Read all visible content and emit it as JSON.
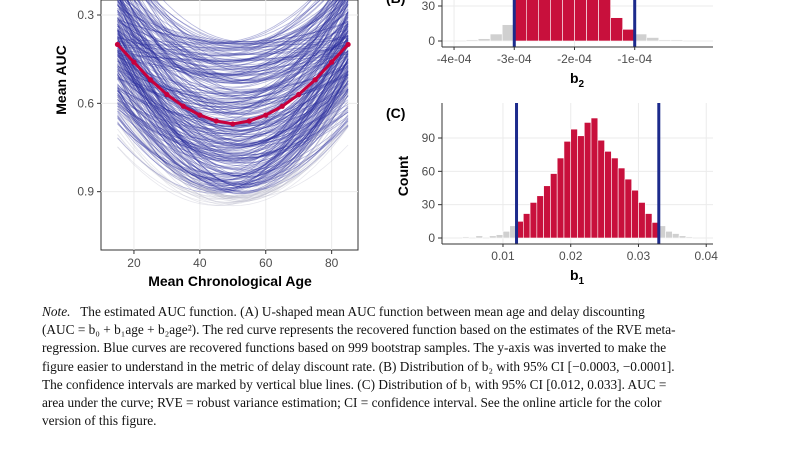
{
  "chart_data": [
    {
      "panel": "A",
      "type": "line",
      "xlabel": "Mean Chronological Age",
      "ylabel": "Mean AUC",
      "xticks": [
        20,
        40,
        60,
        80
      ],
      "yticks": [
        0.3,
        0.6,
        0.9
      ],
      "xlim": [
        10,
        88
      ],
      "ylim_inverted": true,
      "series": [
        {
          "name": "",
          "color": "#c8003c",
          "x": [
            15,
            20,
            25,
            30,
            35,
            40,
            45,
            50,
            55,
            60,
            65,
            70,
            75,
            80,
            85
          ],
          "values": [
            0.4,
            0.46,
            0.52,
            0.57,
            0.61,
            0.64,
            0.66,
            0.67,
            0.66,
            0.64,
            0.61,
            0.57,
            0.52,
            0.46,
            0.4
          ]
        }
      ],
      "bootstrap_curves": 999,
      "bootstrap_color": "#2b2f9e"
    },
    {
      "panel": "B",
      "label": "(B)",
      "type": "bar",
      "xlabel_main": "b",
      "xlabel_sub": "2",
      "xticks": [
        "-4e-04",
        "-3e-04",
        "-2e-04",
        "-1e-04"
      ],
      "xtick_values": [
        -0.0004,
        -0.0003,
        -0.0002,
        -0.0001
      ],
      "yticks": [
        0,
        30
      ],
      "xlim": [
        -0.00042,
        3e-05
      ],
      "bin_width": 2e-05,
      "bin_starts": [
        -0.00038,
        -0.00036,
        -0.00034,
        -0.00032,
        -0.0003,
        -0.00028,
        -0.00026,
        -0.00024,
        -0.00022,
        -0.0002,
        -0.00018,
        -0.00016,
        -0.00014,
        -0.00012,
        -0.0001,
        -8e-05,
        -6e-05,
        -4e-05
      ],
      "values": [
        1,
        2,
        6,
        14,
        36,
        70,
        100,
        118,
        115,
        95,
        68,
        36,
        20,
        10,
        6,
        3,
        1,
        1
      ],
      "ci": [
        -0.0003,
        -0.0001
      ],
      "bar_color": "#c8103c",
      "ci_color": "#1c2a8c"
    },
    {
      "panel": "C",
      "label": "(C)",
      "type": "bar",
      "xlabel_main": "b",
      "xlabel_sub": "1",
      "ylabel": "Count",
      "xticks": [
        "0.01",
        "0.02",
        "0.03",
        "0.04"
      ],
      "xtick_values": [
        0.01,
        0.02,
        0.03,
        0.04
      ],
      "yticks": [
        0,
        30,
        60,
        90
      ],
      "xlim": [
        0.001,
        0.041
      ],
      "bin_width": 0.001,
      "bin_starts": [
        0.004,
        0.006,
        0.008,
        0.009,
        0.01,
        0.011,
        0.012,
        0.013,
        0.014,
        0.015,
        0.016,
        0.017,
        0.018,
        0.019,
        0.02,
        0.021,
        0.022,
        0.023,
        0.024,
        0.025,
        0.026,
        0.027,
        0.028,
        0.029,
        0.03,
        0.031,
        0.032,
        0.033,
        0.034,
        0.035,
        0.036,
        0.037
      ],
      "values": [
        1,
        2,
        2,
        3,
        6,
        11,
        15,
        22,
        32,
        38,
        47,
        58,
        72,
        87,
        98,
        92,
        104,
        108,
        88,
        78,
        72,
        63,
        53,
        43,
        32,
        22,
        14,
        11,
        6,
        4,
        2,
        1
      ],
      "ci": [
        0.012,
        0.033
      ],
      "bar_color": "#c8103c",
      "ci_color": "#1c2a8c"
    }
  ],
  "caption": {
    "note_label": "Note.",
    "line1": "The estimated AUC function. (A) U-shaped mean AUC function between mean age and delay discounting",
    "line2": "(AUC = b₀ + b₁age + b₂age²). The red curve represents the recovered function based on the estimates of the RVE meta-",
    "line3": "regression. Blue curves are recovered functions based on 999 bootstrap samples. The y-axis was inverted to make the",
    "line4": "figure easier to understand in the metric of delay discount rate. (B) Distribution of b₂ with 95% CI [−0.0003, −0.0001].",
    "line5": "The confidence intervals are marked by vertical blue lines. (C) Distribution of b₁ with 95% CI [0.012, 0.033]. AUC =",
    "line6": "area under the curve; RVE = robust variance estimation; CI = confidence interval. See the online article for the color",
    "line7": "version of this figure."
  }
}
